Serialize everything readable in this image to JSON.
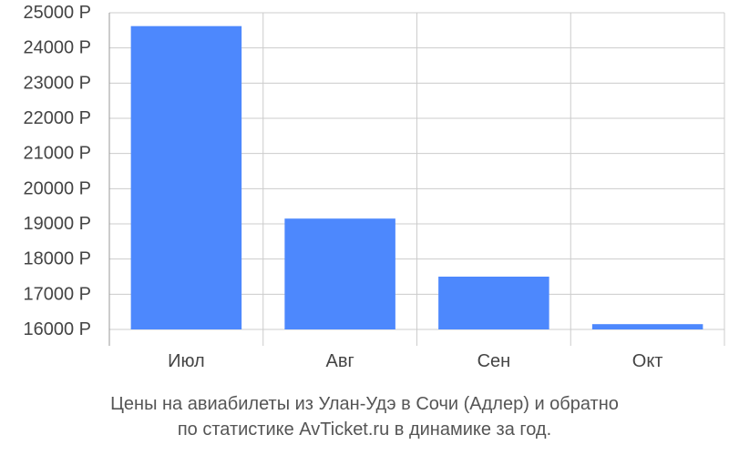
{
  "chart_data": {
    "type": "bar",
    "categories": [
      "Июл",
      "Авг",
      "Сен",
      "Окт"
    ],
    "values": [
      24620,
      19150,
      17500,
      16150
    ],
    "ylim": [
      16000,
      25000
    ],
    "yticks": [
      16000,
      17000,
      18000,
      19000,
      20000,
      21000,
      22000,
      23000,
      24000,
      25000
    ],
    "ytick_labels": [
      "16000 Р",
      "17000 Р",
      "18000 Р",
      "19000 Р",
      "20000 Р",
      "21000 Р",
      "22000 Р",
      "23000 Р",
      "24000 Р",
      "25000 Р"
    ],
    "grid": true,
    "bar_color": "#4d88fd",
    "grid_color": "#cccccc"
  },
  "caption": {
    "line1": "Цены на авиабилеты из Улан-Удэ в Сочи (Адлер) и обратно",
    "line2": "по статистике AvTicket.ru в динамике за год."
  }
}
